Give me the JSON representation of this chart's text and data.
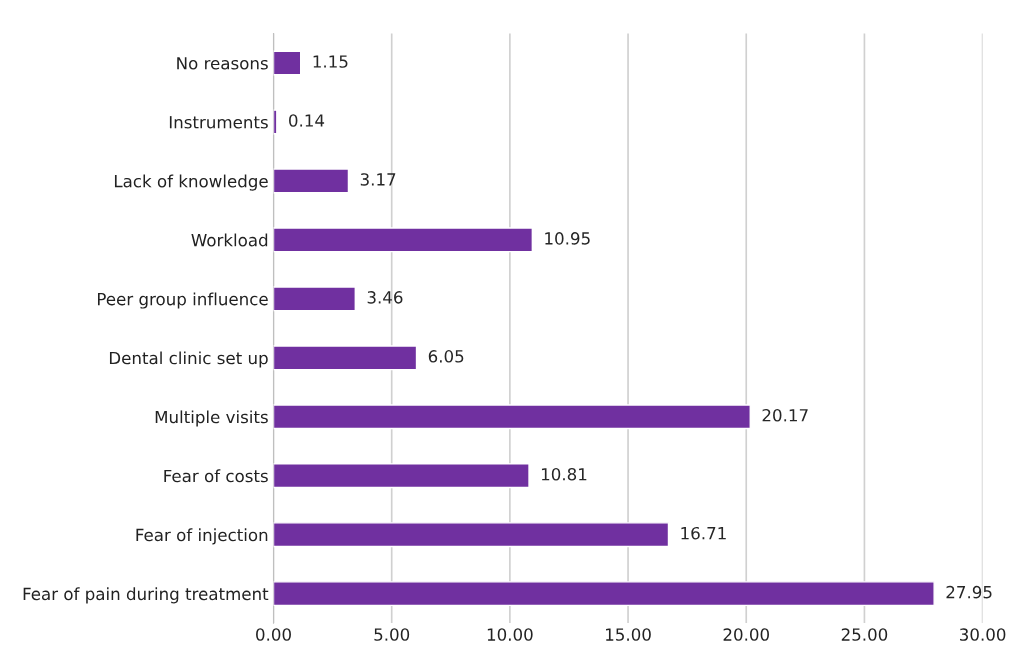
{
  "chart_data": {
    "type": "bar",
    "orientation": "horizontal",
    "categories": [
      "No reasons",
      "Instruments",
      "Lack of knowledge",
      "Workload",
      "Peer group influence",
      "Dental clinic set up",
      "Multiple visits",
      "Fear of costs",
      "Fear of injection",
      "Fear of pain during treatment"
    ],
    "values": [
      1.15,
      0.14,
      3.17,
      10.95,
      3.46,
      6.05,
      20.17,
      10.81,
      16.71,
      27.95
    ],
    "color": "#7030a0",
    "xlim": [
      0,
      30
    ],
    "xticks": [
      {
        "value": 0,
        "label": "0.00"
      },
      {
        "value": 5,
        "label": "5.00"
      },
      {
        "value": 10,
        "label": "10.00"
      },
      {
        "value": 15,
        "label": "15.00"
      },
      {
        "value": 20,
        "label": "20.00"
      },
      {
        "value": 25,
        "label": "25.00"
      },
      {
        "value": 30,
        "label": "30.00"
      }
    ],
    "grid": "x",
    "legend": false,
    "data_labels": true
  }
}
